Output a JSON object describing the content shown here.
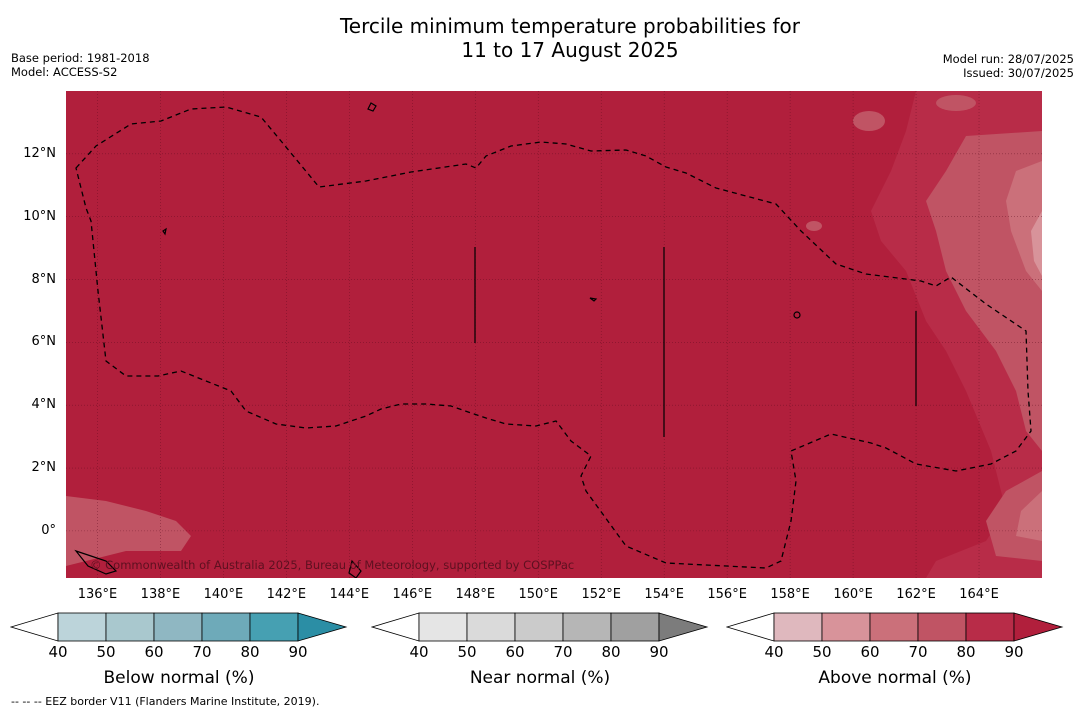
{
  "title_line1": "Tercile minimum temperature probabilities for",
  "title_line2": "11 to 17 August 2025",
  "base_period": "Base period: 1981-2018",
  "model": "Model: ACCESS-S2",
  "model_run": "Model run: 28/07/2025",
  "issued": "Issued: 30/07/2025",
  "copyright": "© Commonwealth of Australia 2025, Bureau of Meteorology, supported by COSPPac",
  "footnote": "-- -- -- EEZ border V11 (Flanders Marine Institute, 2019).",
  "colors": {
    "map_base": "#b11f3c",
    "above_shades": [
      "#dfb8be",
      "#d8939a",
      "#cb707a",
      "#c05464",
      "#b82c48",
      "#b11f3c"
    ],
    "below_shades": [
      "#bcd4da",
      "#a9c8ce",
      "#8fb7c2",
      "#6eaab9",
      "#46a0b2",
      "#2b8ea5"
    ],
    "near_shades": [
      "#e5e5e5",
      "#dadada",
      "#cbcbcb",
      "#b6b6b6",
      "#a0a0a0",
      "#7c7c7c"
    ]
  },
  "chart_data": {
    "type": "heatmap",
    "x_unit": "longitude",
    "y_unit": "latitude",
    "xlim": [
      135,
      166
    ],
    "ylim": [
      -1.5,
      14
    ],
    "lat_ticks": [
      "12°N",
      "10°N",
      "8°N",
      "6°N",
      "4°N",
      "2°N",
      "0°"
    ],
    "lat_values": [
      12,
      10,
      8,
      6,
      4,
      2,
      0
    ],
    "lon_ticks": [
      "136°E",
      "138°E",
      "140°E",
      "142°E",
      "144°E",
      "146°E",
      "148°E",
      "150°E",
      "152°E",
      "154°E",
      "156°E",
      "158°E",
      "160°E",
      "162°E",
      "164°E"
    ],
    "lon_values": [
      136,
      138,
      140,
      142,
      144,
      146,
      148,
      150,
      152,
      154,
      156,
      158,
      160,
      162,
      164
    ],
    "colorbars": [
      {
        "name": "Below normal (%)",
        "ticks": [
          "40",
          "50",
          "60",
          "70",
          "80",
          "90"
        ]
      },
      {
        "name": "Near normal (%)",
        "ticks": [
          "40",
          "50",
          "60",
          "70",
          "80",
          "90"
        ]
      },
      {
        "name": "Above normal (%)",
        "ticks": [
          "40",
          "50",
          "60",
          "70",
          "80",
          "90"
        ]
      }
    ],
    "dominant_category": "Above normal",
    "dominant_probability_range": "80-90+"
  }
}
